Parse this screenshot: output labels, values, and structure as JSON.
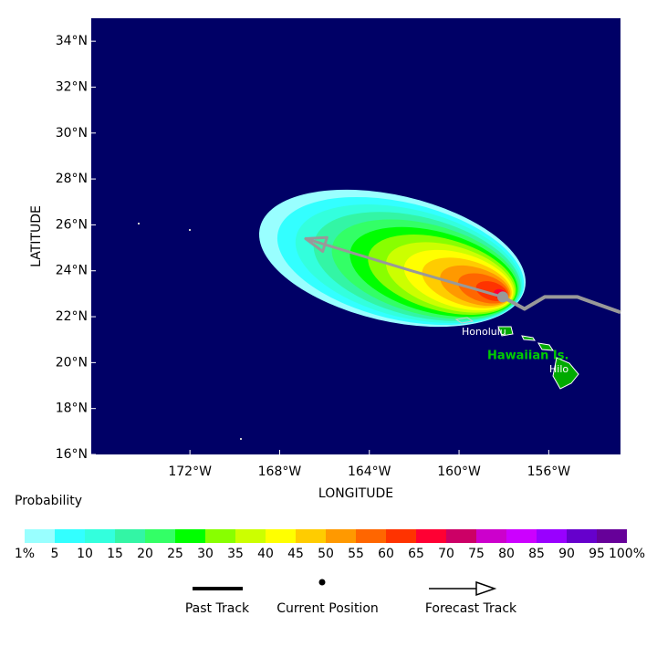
{
  "chart_data": {
    "type": "map",
    "xlabel": "LONGITUDE",
    "ylabel": "LATITUDE",
    "xlim": [
      -176.4,
      -152.8
    ],
    "ylim": [
      16,
      35
    ],
    "xticks": [
      {
        "value": -172,
        "label": "172°W"
      },
      {
        "value": -168,
        "label": "168°W"
      },
      {
        "value": -164,
        "label": "164°W"
      },
      {
        "value": -160,
        "label": "160°W"
      },
      {
        "value": -156,
        "label": "156°W"
      }
    ],
    "yticks": [
      {
        "value": 16,
        "label": "16°N"
      },
      {
        "value": 18,
        "label": "18°N"
      },
      {
        "value": 20,
        "label": "20°N"
      },
      {
        "value": 22,
        "label": "22°N"
      },
      {
        "value": 24,
        "label": "24°N"
      },
      {
        "value": 26,
        "label": "26°N"
      },
      {
        "value": 28,
        "label": "28°N"
      },
      {
        "value": 30,
        "label": "30°N"
      },
      {
        "value": 32,
        "label": "32°N"
      },
      {
        "value": 34,
        "label": "34°N"
      }
    ],
    "ocean_color": "#000066",
    "past_track": {
      "name": "Past Track",
      "color": "#999999",
      "x": [
        -152.8,
        -154.72,
        -156.18,
        -157.08,
        -158.05
      ],
      "y": [
        22.19,
        22.86,
        22.86,
        22.34,
        22.86
      ]
    },
    "current_position": {
      "name": "Current Position",
      "x": -158.05,
      "y": 22.86
    },
    "forecast_track": {
      "name": "Forecast Track",
      "color": "#999999",
      "x": [
        -158.05,
        -162.16,
        -166.84
      ],
      "y": [
        22.86,
        24.01,
        25.4
      ]
    },
    "places": {
      "honolulu": "Honolulu",
      "islands": "Hawaiian Is.",
      "hilo": "Hilo"
    },
    "legend": {
      "title": "Probability",
      "labels": [
        "1%",
        "5",
        "10",
        "15",
        "20",
        "25",
        "30",
        "35",
        "40",
        "45",
        "50",
        "55",
        "60",
        "65",
        "70",
        "75",
        "80",
        "85",
        "90",
        "95",
        "100%"
      ],
      "colors": [
        "#99ffff",
        "#33ffff",
        "#33ffdd",
        "#33f5a5",
        "#33ff66",
        "#00ff00",
        "#88ff00",
        "#ccff00",
        "#ffff00",
        "#ffcc00",
        "#ff9900",
        "#ff6600",
        "#ff3300",
        "#ff0033",
        "#cc0066",
        "#cc00cc",
        "#cc00ff",
        "#9900ff",
        "#6600cc",
        "#660099"
      ]
    }
  }
}
